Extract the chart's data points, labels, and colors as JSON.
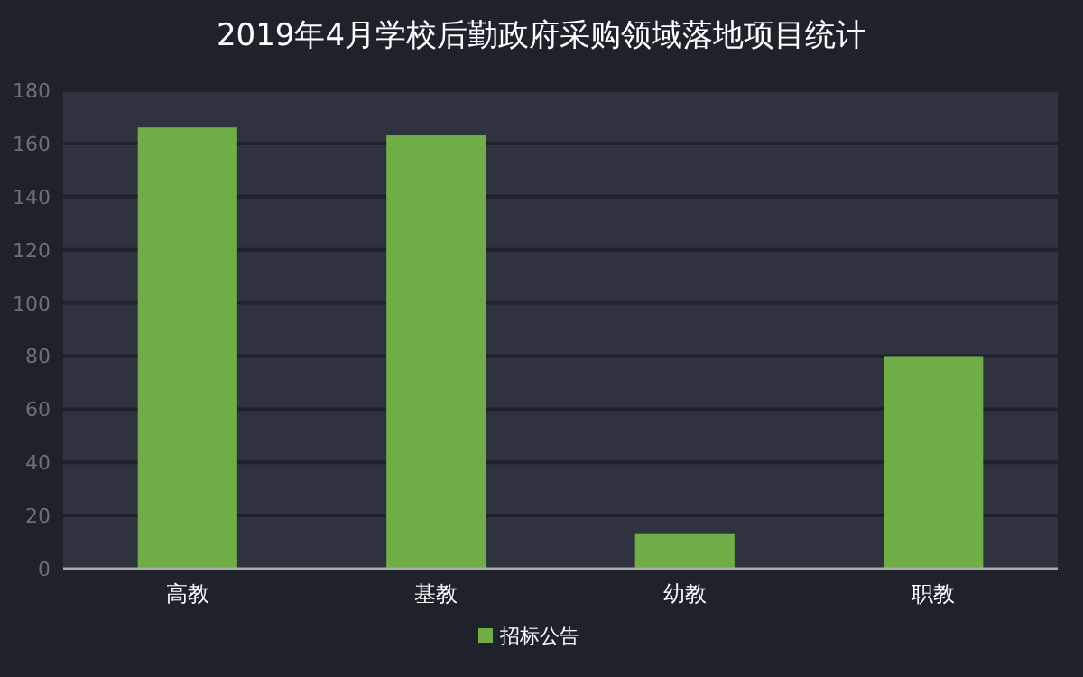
{
  "chart_data": {
    "type": "bar",
    "title": "2019年4月学校后勤政府采购领域落地项目统计",
    "categories": [
      "高教",
      "基教",
      "幼教",
      "职教"
    ],
    "series": [
      {
        "name": "招标公告",
        "color": "#70ad47",
        "values": [
          166,
          163,
          13,
          80
        ]
      }
    ],
    "ylim": [
      0,
      180
    ],
    "yticks": [
      0,
      20,
      40,
      60,
      80,
      100,
      120,
      140,
      160,
      180
    ],
    "grid": "y",
    "legend": "bottom"
  }
}
